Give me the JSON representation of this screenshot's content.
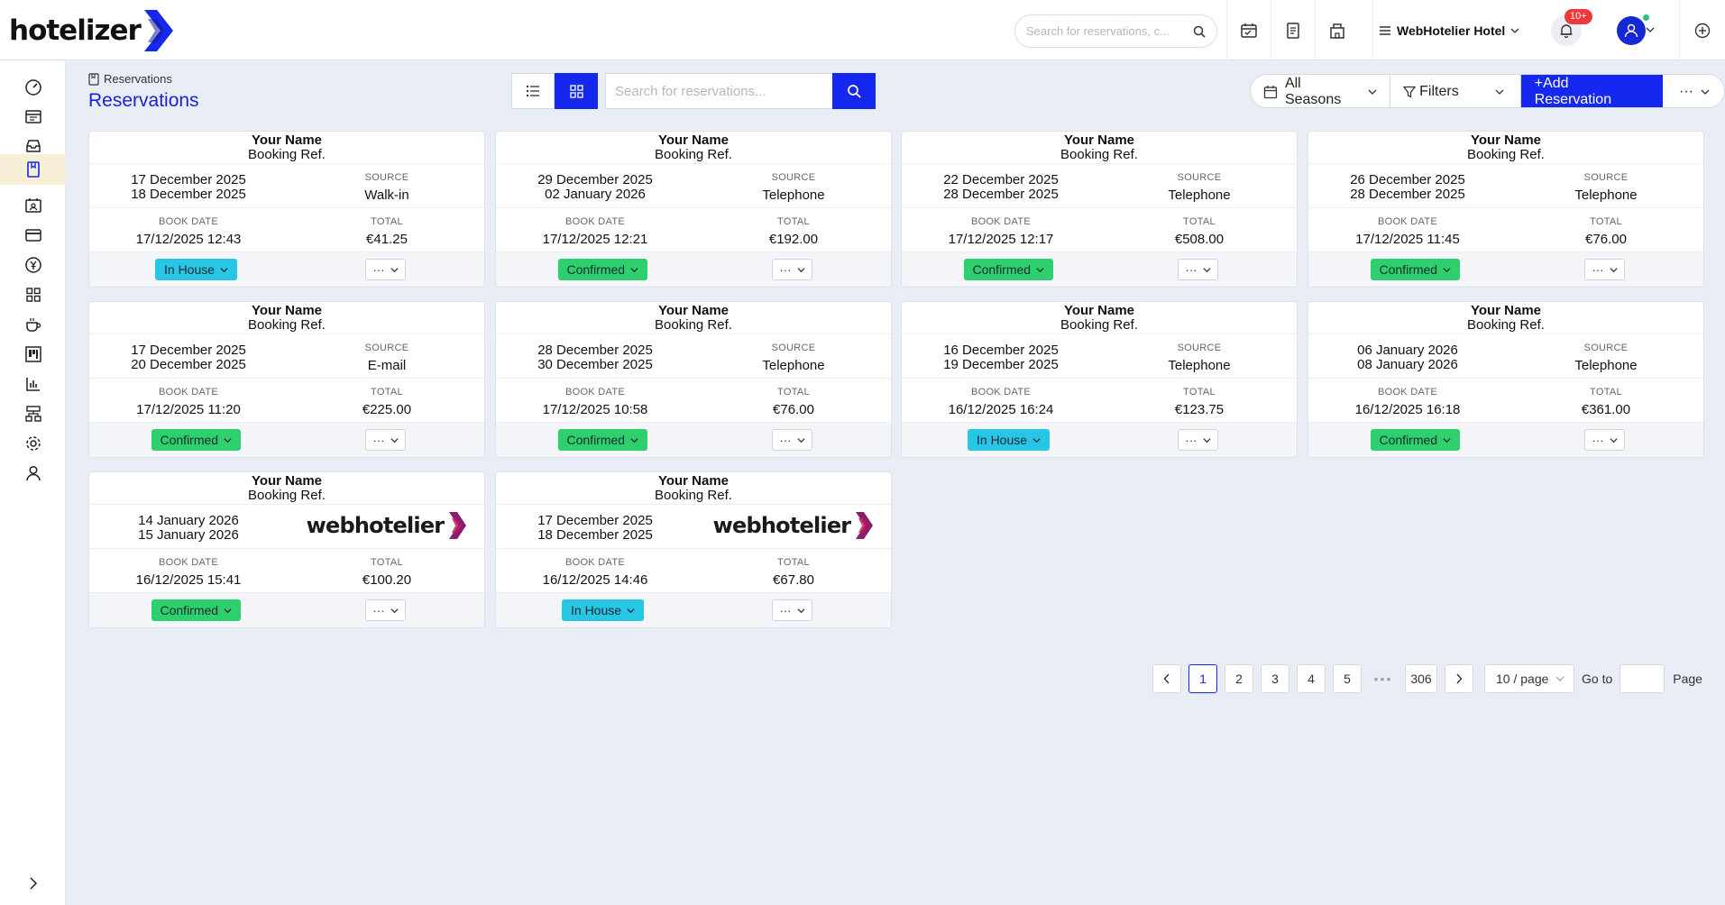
{
  "app": {
    "logo_text": "hotelizer"
  },
  "header": {
    "search_placeholder": "Search for reservations, c...",
    "hotel_name": "WebHotelier Hotel",
    "notification_badge": "10+"
  },
  "sidebar": {
    "items": [
      "dashboard-icon",
      "calendar-icon",
      "inbox-icon",
      "reservations-icon",
      "guest-card-icon",
      "payments-icon",
      "currency-icon",
      "apps-icon",
      "coffee-icon",
      "board-icon",
      "reports-icon",
      "sitemap-icon",
      "settings-icon",
      "user-icon"
    ],
    "active_index": 3
  },
  "page": {
    "breadcrumb": "Reservations",
    "title": "Reservations",
    "search_placeholder": "Search for reservations...",
    "season_label": "All Seasons",
    "filters_label": "Filters",
    "add_label": "+Add Reservation"
  },
  "labels": {
    "source": "SOURCE",
    "book_date": "BOOK DATE",
    "total": "TOTAL"
  },
  "cards": [
    {
      "name": "Your Name",
      "ref": "Booking Ref.",
      "checkin": "17 December 2025",
      "checkout": "18 December 2025",
      "source": "Walk-in",
      "book_date": "17/12/2025 12:43",
      "total": "€41.25",
      "status": "In House",
      "status_type": "inhouse"
    },
    {
      "name": "Your Name",
      "ref": "Booking Ref.",
      "checkin": "29 December 2025",
      "checkout": "02 January 2026",
      "source": "Telephone",
      "book_date": "17/12/2025 12:21",
      "total": "€192.00",
      "status": "Confirmed",
      "status_type": "confirmed"
    },
    {
      "name": "Your Name",
      "ref": "Booking Ref.",
      "checkin": "22 December 2025",
      "checkout": "28 December 2025",
      "source": "Telephone",
      "book_date": "17/12/2025 12:17",
      "total": "€508.00",
      "status": "Confirmed",
      "status_type": "confirmed"
    },
    {
      "name": "Your Name",
      "ref": "Booking Ref.",
      "checkin": "26 December 2025",
      "checkout": "28 December 2025",
      "source": "Telephone",
      "book_date": "17/12/2025 11:45",
      "total": "€76.00",
      "status": "Confirmed",
      "status_type": "confirmed"
    },
    {
      "name": "Your Name",
      "ref": "Booking Ref.",
      "checkin": "17 December 2025",
      "checkout": "20 December 2025",
      "source": "E-mail",
      "book_date": "17/12/2025 11:20",
      "total": "€225.00",
      "status": "Confirmed",
      "status_type": "confirmed"
    },
    {
      "name": "Your Name",
      "ref": "Booking Ref.",
      "checkin": "28 December 2025",
      "checkout": "30 December 2025",
      "source": "Telephone",
      "book_date": "17/12/2025 10:58",
      "total": "€76.00",
      "status": "Confirmed",
      "status_type": "confirmed"
    },
    {
      "name": "Your Name",
      "ref": "Booking Ref.",
      "checkin": "16 December 2025",
      "checkout": "19 December 2025",
      "source": "Telephone",
      "book_date": "16/12/2025 16:24",
      "total": "€123.75",
      "status": "In House",
      "status_type": "inhouse"
    },
    {
      "name": "Your Name",
      "ref": "Booking Ref.",
      "checkin": "06 January 2026",
      "checkout": "08 January 2026",
      "source": "Telephone",
      "book_date": "16/12/2025 16:18",
      "total": "€361.00",
      "status": "Confirmed",
      "status_type": "confirmed"
    },
    {
      "name": "Your Name",
      "ref": "Booking Ref.",
      "checkin": "14 January 2026",
      "checkout": "15 January 2026",
      "source_logo": "webhotelier",
      "book_date": "16/12/2025 15:41",
      "total": "€100.20",
      "status": "Confirmed",
      "status_type": "confirmed"
    },
    {
      "name": "Your Name",
      "ref": "Booking Ref.",
      "checkin": "17 December 2025",
      "checkout": "18 December 2025",
      "source_logo": "webhotelier",
      "book_date": "16/12/2025 14:46",
      "total": "€67.80",
      "status": "In House",
      "status_type": "inhouse"
    }
  ],
  "pagination": {
    "pages": [
      "1",
      "2",
      "3",
      "4",
      "5"
    ],
    "ellipsis": "•••",
    "last_page": "306",
    "current": "1",
    "page_size": "10 / page",
    "goto_label": "Go to",
    "page_label": "Page"
  },
  "colors": {
    "primary": "#1428f0",
    "confirmed": "#2ed06e",
    "inhouse": "#26c6e4",
    "badge": "#f0383a"
  }
}
